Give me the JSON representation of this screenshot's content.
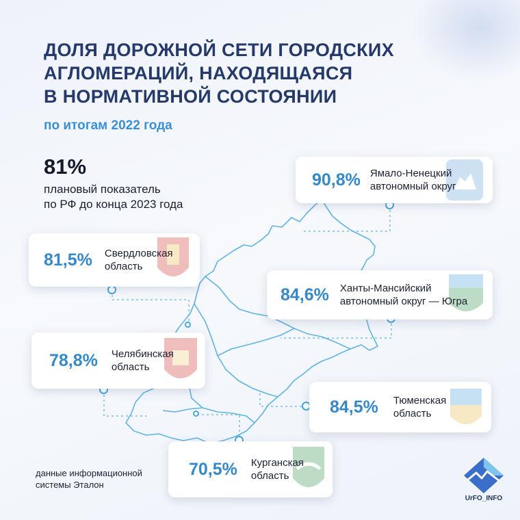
{
  "title": {
    "line1": "ДОЛЯ ДОРОЖНОЙ СЕТИ ГОРОДСКИХ",
    "line2": "АГЛОМЕРАЦИЙ, НАХОДЯЩАЯСЯ",
    "line3": "В НОРМАТИВНОЙ СОСТОЯНИИ"
  },
  "subtitle": "по итогам 2022 года",
  "plan": {
    "value": "81%",
    "line1": "плановый показатель",
    "line2": "по РФ до конца 2023 года"
  },
  "regions": [
    {
      "value": "90,8%",
      "line1": "Ямало-Ненецкий",
      "line2": "автономный округ",
      "emblem": "reindeer-emblem-icon"
    },
    {
      "value": "81,5%",
      "line1": "Свердловская",
      "line2": "область",
      "emblem": "sverdlovsk-emblem-icon"
    },
    {
      "value": "84,6%",
      "line1": "Ханты-Мансийский",
      "line2": "автономный округ — Югра",
      "emblem": "ugra-emblem-icon"
    },
    {
      "value": "78,8%",
      "line1": "Челябинская",
      "line2": "область",
      "emblem": "chelyabinsk-emblem-icon"
    },
    {
      "value": "84,5%",
      "line1": "Тюменская",
      "line2": "область",
      "emblem": "tyumen-emblem-icon"
    },
    {
      "value": "70,5%",
      "line1": "Курганская",
      "line2": "область",
      "emblem": "kurgan-emblem-icon"
    }
  ],
  "source": {
    "line1": "данные информационной",
    "line2": "системы Эталон"
  },
  "logo": {
    "text": "UrFO_INFO",
    "icon": "mountain-logo-icon"
  },
  "colors": {
    "title": "#253a6a",
    "accent": "#3a8fd6",
    "value": "#3589c9",
    "map_line": "#5fb4e4"
  }
}
